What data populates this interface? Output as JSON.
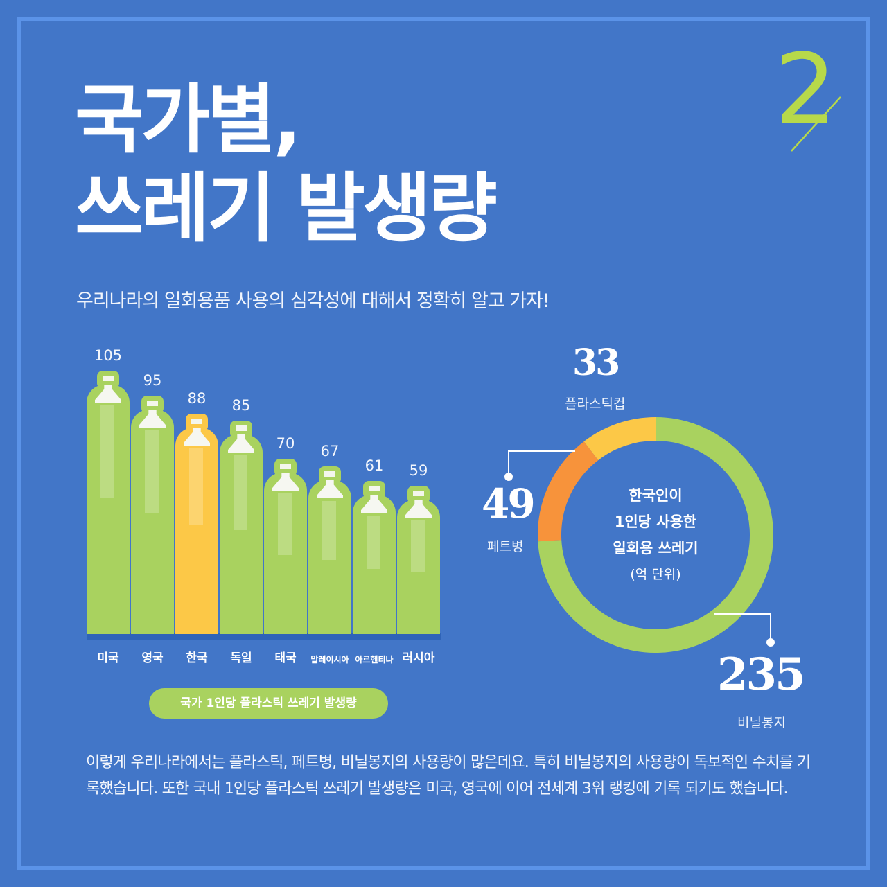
{
  "header": {
    "page_number": "2",
    "title_line1": "국가별,",
    "title_line2": "쓰레기 발생량",
    "subtitle": "우리나라의 일회용품 사용의 심각성에 대해서 정확히 알고 가자!"
  },
  "colors": {
    "background": "#4276c8",
    "frame": "#5b93e8",
    "green": "#a9d25f",
    "yellow": "#fcc847",
    "orange": "#f7933b",
    "accent_lime": "#b7d94a"
  },
  "bar_chart": {
    "caption": "국가 1인당 플라스틱 쓰레기 발생량",
    "bars": [
      {
        "label": "미국",
        "value": "105",
        "highlight": false
      },
      {
        "label": "영국",
        "value": "95",
        "highlight": false
      },
      {
        "label": "한국",
        "value": "88",
        "highlight": true
      },
      {
        "label": "독일",
        "value": "85",
        "highlight": false
      },
      {
        "label": "태국",
        "value": "70",
        "highlight": false
      },
      {
        "label": "말레이시아",
        "value": "67",
        "highlight": false
      },
      {
        "label": "아르헨티나",
        "value": "61",
        "highlight": false
      },
      {
        "label": "러시아",
        "value": "59",
        "highlight": false
      }
    ]
  },
  "donut_chart": {
    "center_line1": "한국인이",
    "center_line2": "1인당 사용한",
    "center_line3": "일회용 쓰레기",
    "center_unit": "(억 단위)",
    "segments": [
      {
        "label": "플라스틱컵",
        "value": "33"
      },
      {
        "label": "페트병",
        "value": "49"
      },
      {
        "label": "비닐봉지",
        "value": "235"
      }
    ]
  },
  "chart_data": [
    {
      "type": "bar",
      "title": "국가 1인당 플라스틱 쓰레기 발생량",
      "categories": [
        "미국",
        "영국",
        "한국",
        "독일",
        "태국",
        "말레이시아",
        "아르헨티나",
        "러시아"
      ],
      "values": [
        105,
        95,
        88,
        85,
        70,
        67,
        61,
        59
      ],
      "highlight": "한국",
      "xlabel": "",
      "ylabel": "",
      "grid": false
    },
    {
      "type": "pie",
      "variant": "donut",
      "title": "한국인이 1인당 사용한 일회용 쓰레기 (억 단위)",
      "categories": [
        "플라스틱컵",
        "페트병",
        "비닐봉지"
      ],
      "values": [
        33,
        49,
        235
      ],
      "colors": [
        "#fcc847",
        "#f7933b",
        "#a9d25f"
      ]
    }
  ],
  "body": {
    "paragraph": "이렇게 우리나라에서는 플라스틱, 페트병, 비닐봉지의 사용량이 많은데요. 특히 비닐봉지의 사용량이 독보적인 수치를 기록했습니다. 또한 국내 1인당 플라스틱 쓰레기 발생량은 미국, 영국에 이어 전세계 3위 랭킹에 기록 되기도 했습니다."
  }
}
